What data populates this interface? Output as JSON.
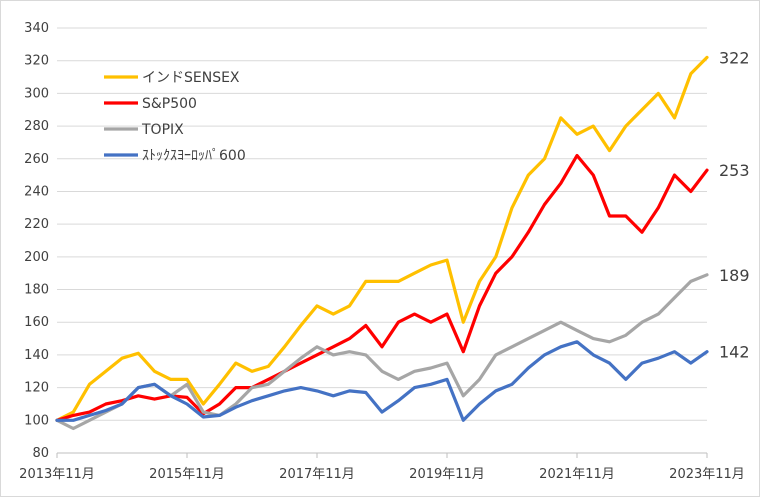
{
  "chart_data": {
    "type": "line",
    "x": [
      "2013年11月",
      "2014年02月",
      "2014年05月",
      "2014年08月",
      "2014年11月",
      "2015年02月",
      "2015年05月",
      "2015年08月",
      "2015年11月",
      "2016年02月",
      "2016年05月",
      "2016年08月",
      "2016年11月",
      "2017年02月",
      "2017年05月",
      "2017年08月",
      "2017年11月",
      "2018年02月",
      "2018年05月",
      "2018年08月",
      "2018年11月",
      "2019年02月",
      "2019年05月",
      "2019年08月",
      "2019年11月",
      "2020年02月",
      "2020年05月",
      "2020年08月",
      "2020年11月",
      "2021年02月",
      "2021年05月",
      "2021年08月",
      "2021年11月",
      "2022年02月",
      "2022年05月",
      "2022年08月",
      "2022年11月",
      "2023年02月",
      "2023年05月",
      "2023年08月",
      "2023年11月"
    ],
    "xticks": [
      "2013年11月",
      "2015年11月",
      "2017年11月",
      "2019年11月",
      "2021年11月",
      "2023年11月"
    ],
    "ylim": [
      80,
      340
    ],
    "yticks": [
      80,
      100,
      120,
      140,
      160,
      180,
      200,
      220,
      240,
      260,
      280,
      300,
      320,
      340
    ],
    "grid": true,
    "legend_position": "top-left",
    "series": [
      {
        "name": "インドSENSEX",
        "color": "#FFC000",
        "end_label": "322",
        "values": [
          100,
          105,
          122,
          130,
          138,
          141,
          130,
          125,
          125,
          110,
          122,
          135,
          130,
          133,
          145,
          158,
          170,
          165,
          170,
          185,
          185,
          185,
          190,
          195,
          198,
          160,
          185,
          200,
          230,
          250,
          260,
          285,
          275,
          280,
          265,
          280,
          290,
          300,
          285,
          312,
          322
        ]
      },
      {
        "name": "S&P500",
        "color": "#FF0000",
        "end_label": "253",
        "values": [
          100,
          103,
          105,
          110,
          112,
          115,
          113,
          115,
          114,
          104,
          110,
          120,
          120,
          125,
          130,
          135,
          140,
          145,
          150,
          158,
          145,
          160,
          165,
          160,
          165,
          142,
          170,
          190,
          200,
          215,
          232,
          245,
          262,
          250,
          225,
          225,
          215,
          230,
          250,
          240,
          253
        ]
      },
      {
        "name": "TOPIX",
        "color": "#A6A6A6",
        "end_label": "189",
        "values": [
          100,
          95,
          100,
          105,
          110,
          120,
          122,
          115,
          122,
          105,
          103,
          110,
          120,
          122,
          130,
          138,
          145,
          140,
          142,
          140,
          130,
          125,
          130,
          132,
          135,
          115,
          125,
          140,
          145,
          150,
          155,
          160,
          155,
          150,
          148,
          152,
          160,
          165,
          175,
          185,
          189
        ]
      },
      {
        "name": "ｽﾄｯｸｽﾖｰﾛｯﾊﾟ600",
        "color": "#4472C4",
        "end_label": "142",
        "values": [
          100,
          100,
          103,
          106,
          110,
          120,
          122,
          115,
          110,
          102,
          103,
          108,
          112,
          115,
          118,
          120,
          118,
          115,
          118,
          117,
          105,
          112,
          120,
          122,
          125,
          100,
          110,
          118,
          122,
          132,
          140,
          145,
          148,
          140,
          135,
          125,
          135,
          138,
          142,
          135,
          142
        ]
      }
    ]
  }
}
